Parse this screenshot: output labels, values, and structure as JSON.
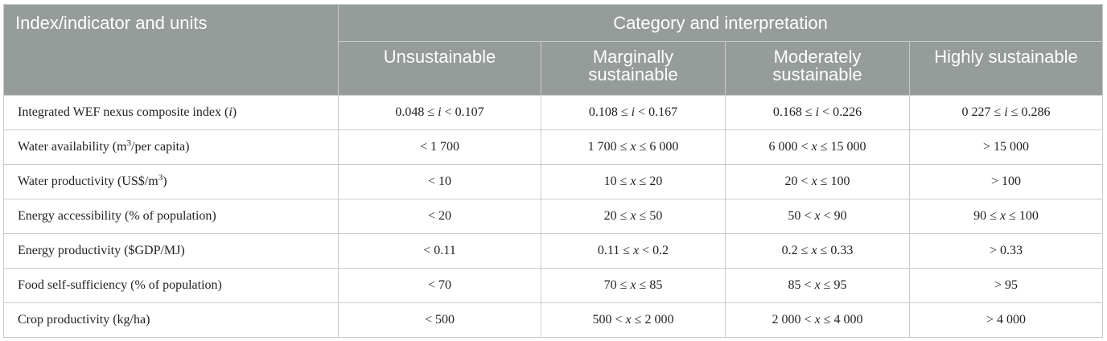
{
  "header": {
    "index_label": "Index/indicator and units",
    "category_label": "Category and interpretation",
    "columns": [
      "Unsustainable",
      "Marginally sustainable",
      "Moderately sustainable",
      "Highly sustainable"
    ]
  },
  "rows": [
    {
      "label": "Integrated WEF nexus composite index (i)",
      "values": [
        "0.048 ≤ i < 0.107",
        "0.108 ≤ i < 0.167",
        "0.168 ≤ i < 0.226",
        "0 227 ≤ i ≤ 0.286"
      ]
    },
    {
      "label": "Water availability (m3/per capita)",
      "values": [
        "< 1 700",
        "1 700 ≤ x ≤ 6 000",
        "6 000 < x ≤ 15 000",
        "> 15 000"
      ]
    },
    {
      "label": "Water productivity (US$/m3)",
      "values": [
        "< 10",
        "10 ≤ x ≤ 20",
        "20 < x ≤ 100",
        "> 100"
      ]
    },
    {
      "label": "Energy accessibility (% of population)",
      "values": [
        "< 20",
        "20 ≤ x ≤ 50",
        "50 < x < 90",
        "90 ≤ x ≤ 100"
      ]
    },
    {
      "label": "Energy productivity ($GDP/MJ)",
      "values": [
        "< 0.11",
        "0.11 ≤ x < 0.2",
        "0.2 ≤ x ≤ 0.33",
        "> 0.33"
      ]
    },
    {
      "label": "Food self-sufficiency (% of population)",
      "values": [
        "< 70",
        "70 ≤ x ≤ 85",
        "85 < x ≤ 95",
        "> 95"
      ]
    },
    {
      "label": "Crop productivity (kg/ha)",
      "values": [
        "< 500",
        "500 < x ≤ 2 000",
        "2 000 < x ≤ 4 000",
        "> 4 000"
      ]
    }
  ]
}
